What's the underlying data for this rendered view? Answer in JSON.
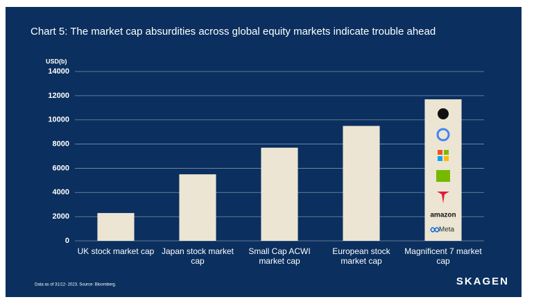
{
  "chart_data": {
    "type": "bar",
    "title": "Chart 5: The market cap absurdities across global equity markets indicate trouble ahead",
    "y_label": "USD(b)",
    "categories": [
      "UK stock market cap",
      "Japan stock market cap",
      "Small Cap ACWI market cap",
      "European stock market cap",
      "Magnificent 7 market cap"
    ],
    "values": [
      2300,
      5500,
      7700,
      9500,
      11700
    ],
    "color": "#ece5d3",
    "ylim": [
      0,
      14000
    ],
    "yticks": [
      0,
      2000,
      4000,
      6000,
      8000,
      10000,
      12000,
      14000
    ],
    "grid": true,
    "logo_texts": [
      "amazon",
      "Meta"
    ],
    "footnote": "Data as of 31/12- 2023. Source: Bloomberg.",
    "brand": "SKAGEN"
  }
}
